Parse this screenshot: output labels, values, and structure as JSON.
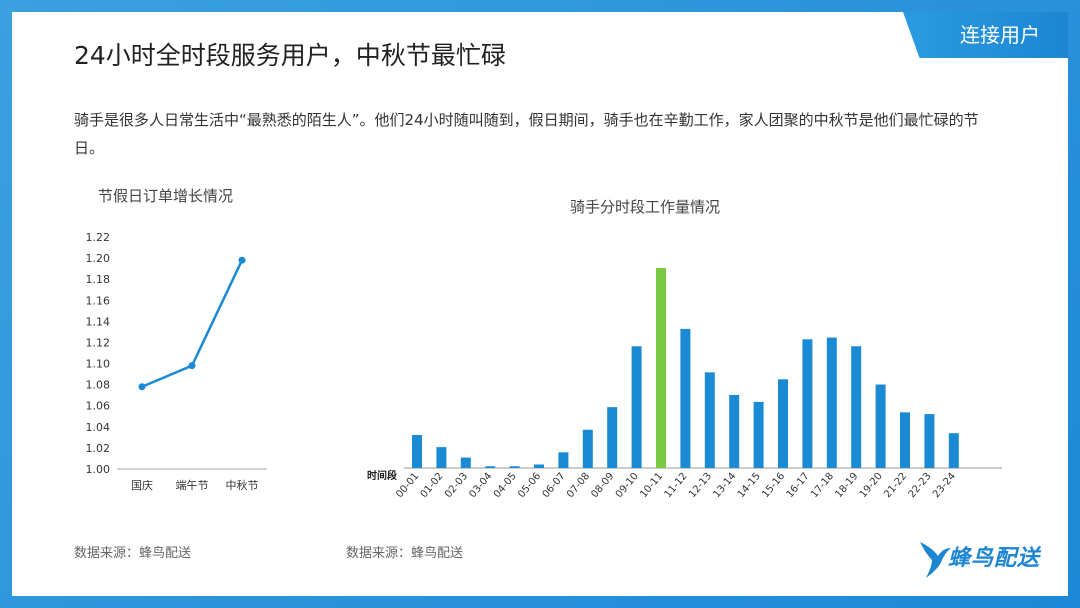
{
  "tag_label": "连接用户",
  "title": "24小时全时段服务用户，中秋节最忙碌",
  "intro": "骑手是很多人日常生活中“最熟悉的陌生人”。他们24小时随叫随到，假日期间，骑手也在辛勤工作，家人团聚的中秋节是他们最忙碌的节日。",
  "source_left": "数据来源：蜂鸟配送",
  "source_right": "数据来源：蜂鸟配送",
  "logo_text": "蜂鸟配送",
  "logo_icon": "hummingbird-icon",
  "colors": {
    "accent": "#1e88d6",
    "bar": "#1a8ad4",
    "highlight": "#7ac943"
  },
  "chart_data": [
    {
      "type": "line",
      "title": "节假日订单增长情况",
      "categories": [
        "国庆",
        "端午节",
        "中秋节"
      ],
      "series": [
        {
          "values": [
            1.078,
            1.098,
            1.198
          ]
        }
      ],
      "ylim": [
        1.0,
        1.22
      ],
      "yticks": [
        "1.00",
        "1.02",
        "1.04",
        "1.06",
        "1.08",
        "1.10",
        "1.12",
        "1.14",
        "1.16",
        "1.18",
        "1.20",
        "1.22"
      ],
      "grid": false
    },
    {
      "type": "bar",
      "title": "骑手分时段工作量情况",
      "xlabel": "时间段",
      "categories": [
        "00-01",
        "01-02",
        "02-03",
        "03-04",
        "04-05",
        "05-06",
        "06-07",
        "07-08",
        "08-09",
        "09-10",
        "10-11",
        "11-12",
        "12-13",
        "13-14",
        "14-15",
        "15-16",
        "16-17",
        "17-18",
        "18-19",
        "19-20",
        "21-22",
        "22-23",
        "23-24"
      ],
      "values": [
        19,
        12,
        6,
        1,
        1,
        2,
        9,
        22,
        35,
        70,
        115,
        80,
        55,
        42,
        38,
        51,
        74,
        75,
        70,
        48,
        32,
        31,
        20
      ],
      "highlight_index": 10,
      "y_axis_visible": false
    }
  ]
}
